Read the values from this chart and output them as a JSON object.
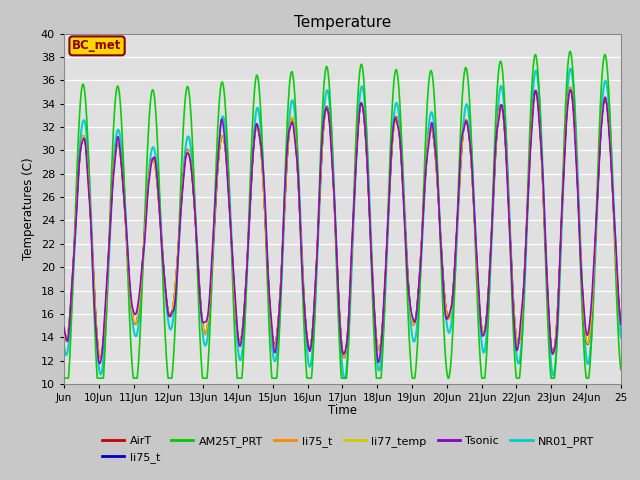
{
  "title": "Temperature",
  "ylabel": "Temperatures (C)",
  "xlabel": "Time",
  "ylim": [
    10,
    40
  ],
  "xlim_start": 0,
  "xlim_end": 16,
  "x_tick_labels": [
    "Jun",
    "10Jun",
    "11Jun",
    "12Jun",
    "13Jun",
    "14Jun",
    "15Jun",
    "16Jun",
    "17Jun",
    "18Jun",
    "19Jun",
    "20Jun",
    "21Jun",
    "22Jun",
    "23Jun",
    "24Jun",
    "25"
  ],
  "annotation_text": "BC_met",
  "annotation_color": "#8B0000",
  "annotation_bg": "#FFD700",
  "fig_bg": "#C8C8C8",
  "axes_bg": "#E0E0E0",
  "grid_color": "#F0F0F0",
  "series": [
    {
      "label": "AirT",
      "color": "#CC0000",
      "lw": 1.0,
      "zorder": 5
    },
    {
      "label": "li75_t",
      "color": "#0000CC",
      "lw": 1.0,
      "zorder": 4
    },
    {
      "label": "AM25T_PRT",
      "color": "#00CC00",
      "lw": 1.2,
      "zorder": 3
    },
    {
      "label": "li75_t",
      "color": "#FF8800",
      "lw": 1.0,
      "zorder": 5
    },
    {
      "label": "li77_temp",
      "color": "#CCCC00",
      "lw": 1.0,
      "zorder": 5
    },
    {
      "label": "Tsonic",
      "color": "#8800CC",
      "lw": 1.2,
      "zorder": 6
    },
    {
      "label": "NR01_PRT",
      "color": "#00CCCC",
      "lw": 1.5,
      "zorder": 2
    }
  ],
  "legend_fontsize": 8,
  "title_fontsize": 11
}
